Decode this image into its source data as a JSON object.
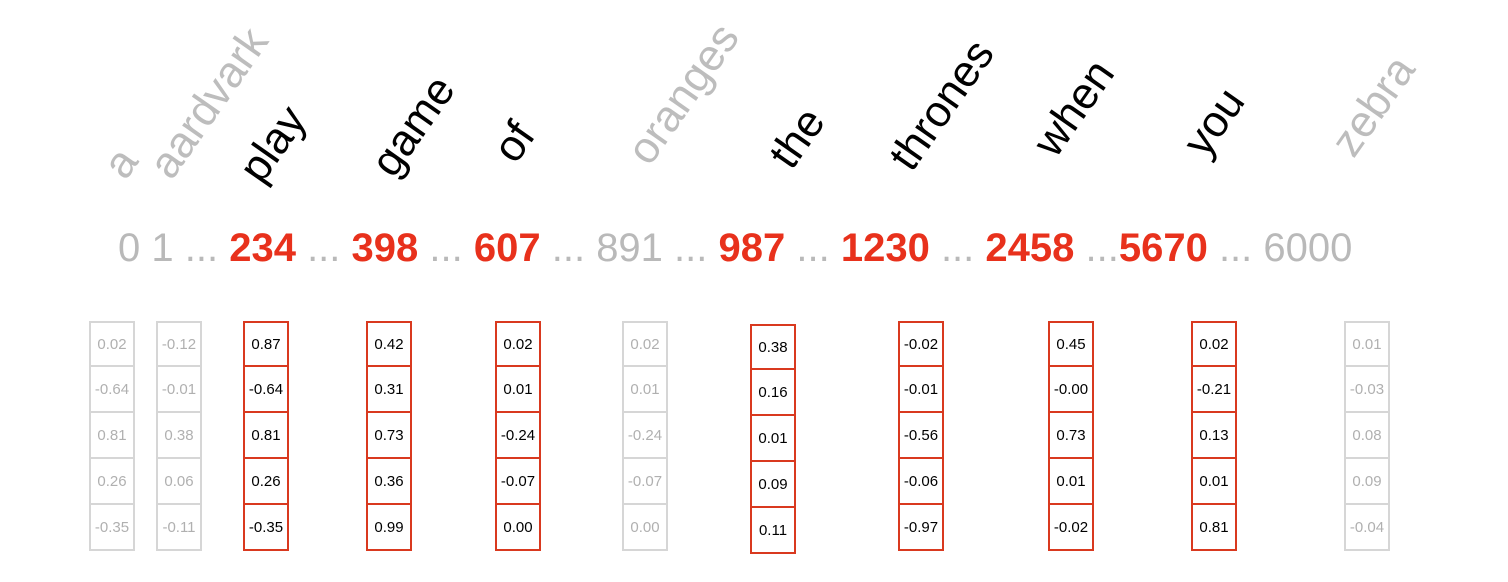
{
  "vocabulary": [
    {
      "word": "a",
      "index": "0",
      "active": false,
      "values": [
        "0.02",
        "-0.64",
        "0.81",
        "0.26",
        "-0.35"
      ]
    },
    {
      "word": "aardvark",
      "index": "1",
      "active": false,
      "values": [
        "-0.12",
        "-0.01",
        "0.38",
        "0.06",
        "-0.11"
      ]
    },
    {
      "word": "play",
      "index": "234",
      "active": true,
      "values": [
        "0.87",
        "-0.64",
        "0.81",
        "0.26",
        "-0.35"
      ]
    },
    {
      "word": "game",
      "index": "398",
      "active": true,
      "values": [
        "0.42",
        "0.31",
        "0.73",
        "0.36",
        "0.99"
      ]
    },
    {
      "word": "of",
      "index": "607",
      "active": true,
      "values": [
        "0.02",
        "0.01",
        "-0.24",
        "-0.07",
        "0.00"
      ]
    },
    {
      "word": "oranges",
      "index": "891",
      "active": false,
      "values": [
        "0.02",
        "0.01",
        "-0.24",
        "-0.07",
        "0.00"
      ]
    },
    {
      "word": "the",
      "index": "987",
      "active": true,
      "values": [
        "0.38",
        "0.16",
        "0.01",
        "0.09",
        "0.11"
      ]
    },
    {
      "word": "thrones",
      "index": "1230",
      "active": true,
      "values": [
        "-0.02",
        "-0.01",
        "-0.56",
        "-0.06",
        "-0.97"
      ]
    },
    {
      "word": "when",
      "index": "2458",
      "active": true,
      "values": [
        "0.45",
        "-0.00",
        "0.73",
        "0.01",
        "-0.02"
      ]
    },
    {
      "word": "you",
      "index": "5670",
      "active": true,
      "values": [
        "0.02",
        "-0.21",
        "0.13",
        "0.01",
        "0.81"
      ]
    },
    {
      "word": "zebra",
      "index": "6000",
      "active": false,
      "values": [
        "0.01",
        "-0.03",
        "0.08",
        "0.09",
        "-0.04"
      ]
    }
  ],
  "index_separators": [
    " ",
    " ... ",
    " ... ",
    " ... ",
    " ... ",
    " ... ",
    " ... ",
    " ... ",
    " ...",
    " ... "
  ],
  "colors": {
    "highlight": "#e8311c",
    "box_highlight": "#d9391f",
    "muted_text": "#b9b9b9",
    "muted_box": "#d6d6d6"
  }
}
